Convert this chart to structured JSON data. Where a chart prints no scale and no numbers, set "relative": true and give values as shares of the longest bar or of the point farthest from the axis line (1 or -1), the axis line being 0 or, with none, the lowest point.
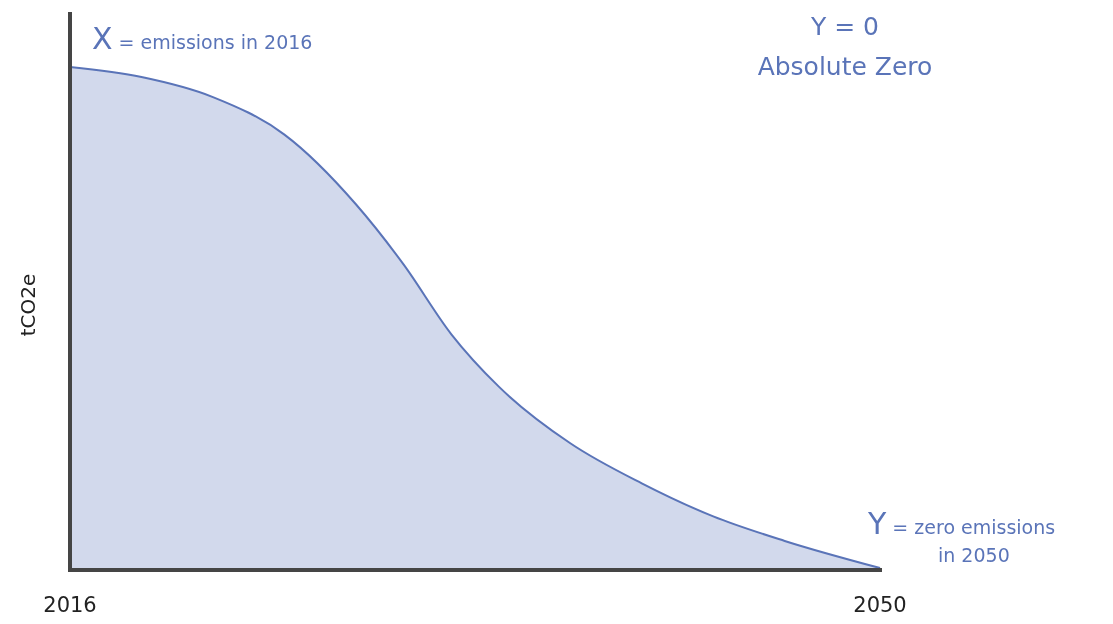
{
  "chart_data": {
    "type": "area",
    "ylabel": "tCO2e",
    "relative": true,
    "x": [
      2016,
      2019,
      2022,
      2025,
      2028,
      2030,
      2032,
      2034,
      2037,
      2040,
      2043,
      2046,
      2050
    ],
    "series": [
      {
        "color": "#5a74b8",
        "values": [
          1,
          0.98,
          0.94,
          0.865,
          0.726,
          0.606,
          0.467,
          0.362,
          0.249,
          0.169,
          0.103,
          0.054,
          0
        ]
      }
    ],
    "xlim": [
      2016,
      2050
    ],
    "xticks": [
      2016,
      2050
    ],
    "annotations": [
      {
        "text": "X = emissions in 2016",
        "x": 2016,
        "y": 1
      },
      {
        "text": "Y = zero emissions in 2050",
        "x": 2050,
        "y": 0
      },
      "Y = 0",
      "Absolute Zero"
    ]
  }
}
